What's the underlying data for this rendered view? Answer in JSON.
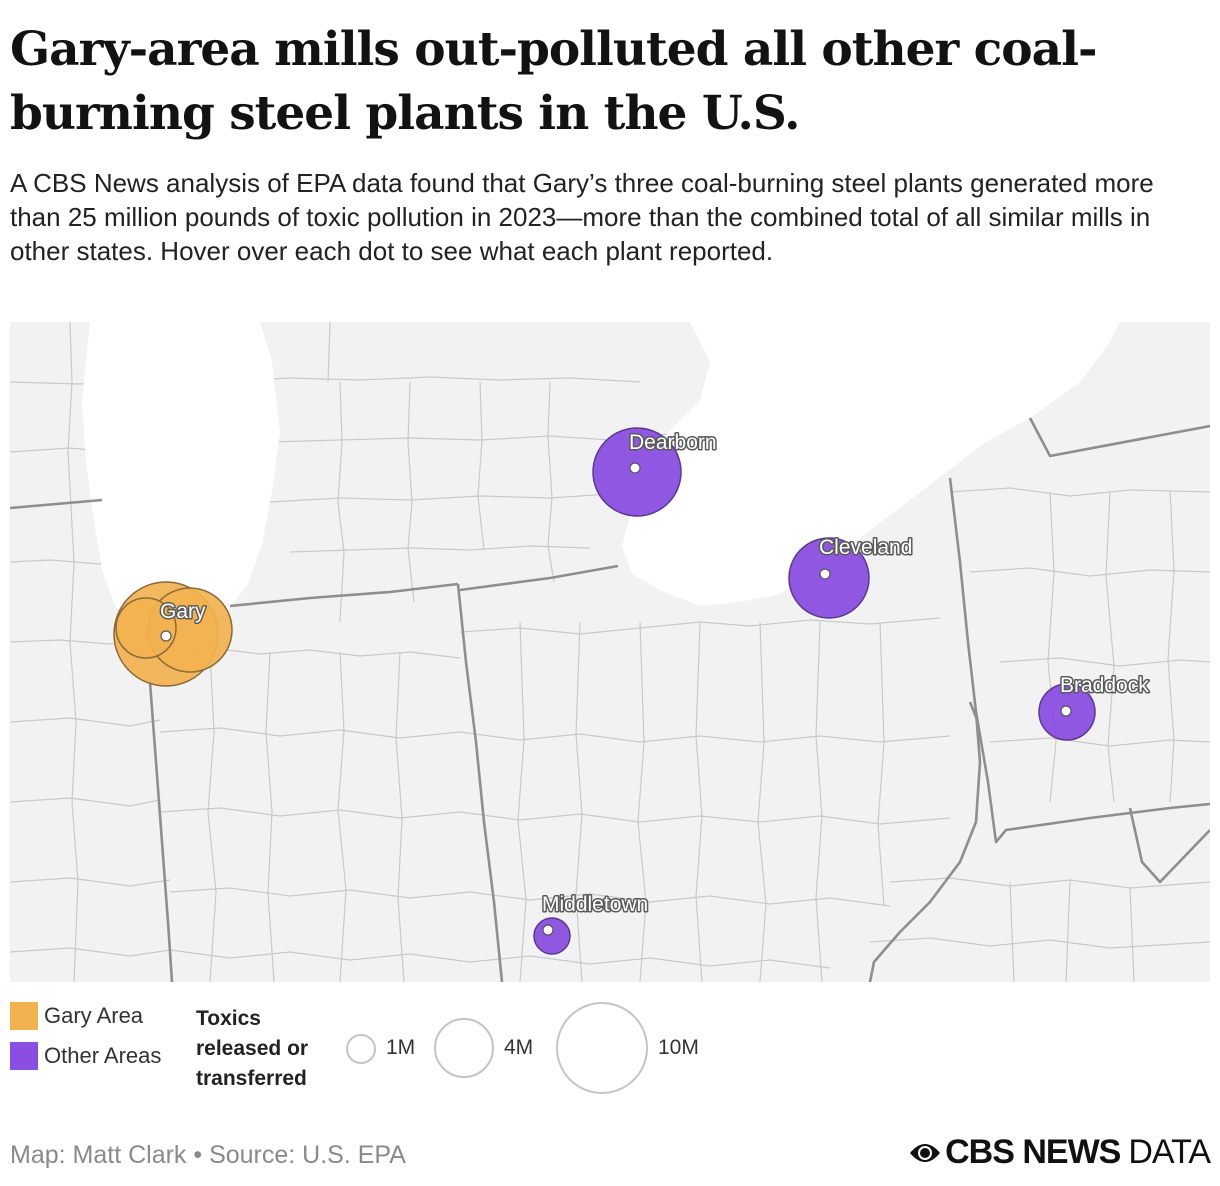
{
  "title": "Gary-area mills out-polluted all other coal-burning steel plants in the U.S.",
  "subtitle": "A CBS News analysis of EPA data found that Gary’s three coal-burning steel plants generated more than 25 million pounds of toxic pollution in 2023—more than the combined total of all similar mills in other states. Hover over each dot to see what each plant reported.",
  "colors": {
    "gary": "#f2b24f",
    "other": "#8a4fe0",
    "land": "#f2f2f2",
    "water": "#ffffff",
    "county_border": "#c8c8c8",
    "state_border": "#8e8e8e"
  },
  "locations": [
    {
      "label": "Gary",
      "group": "gary"
    },
    {
      "label": "Dearborn",
      "group": "other"
    },
    {
      "label": "Cleveland",
      "group": "other"
    },
    {
      "label": "Braddock",
      "group": "other"
    },
    {
      "label": "Middletown",
      "group": "other"
    }
  ],
  "legend": {
    "color_items": [
      {
        "label": "Gary Area",
        "color": "#f2b24f"
      },
      {
        "label": "Other Areas",
        "color": "#8a4fe0"
      }
    ],
    "size_title": "Toxics\nreleased or\ntransferred",
    "size_items": [
      {
        "label": "1M"
      },
      {
        "label": "4M"
      },
      {
        "label": "10M"
      }
    ]
  },
  "credit": "Map: Matt Clark • Source: U.S. EPA",
  "logo": {
    "bold": "CBS NEWS",
    "light": "DATA"
  }
}
